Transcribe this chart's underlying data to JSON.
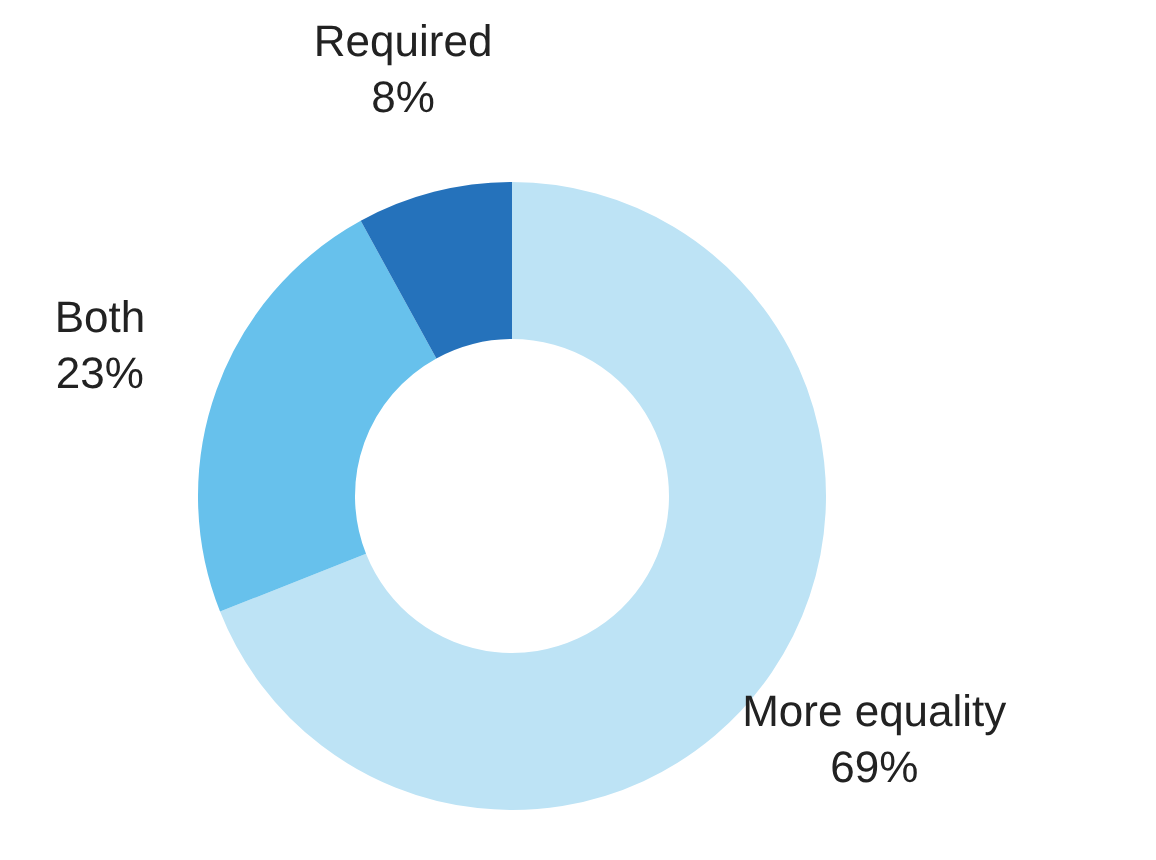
{
  "chart_data": {
    "type": "donut",
    "categories": [
      "More equality",
      "Both",
      "Required"
    ],
    "values": [
      69,
      23,
      8
    ],
    "colors": [
      "#bde3f5",
      "#67c1ec",
      "#2572bb"
    ],
    "value_labels": [
      "69%",
      "23%",
      "8%"
    ],
    "legend": false
  }
}
